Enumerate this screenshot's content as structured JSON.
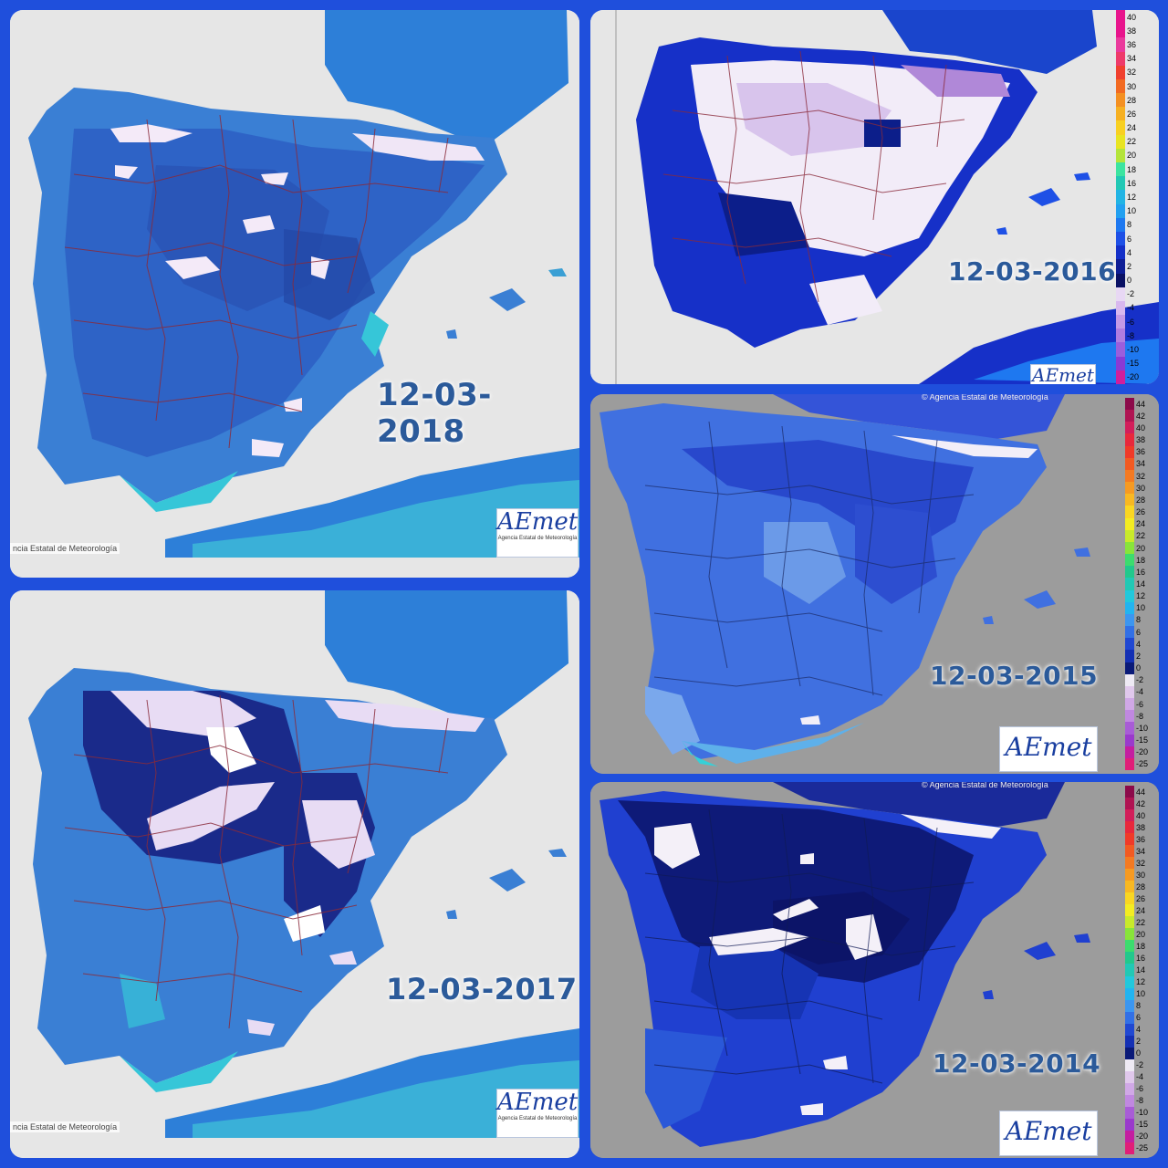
{
  "panels": [
    {
      "id": "p2018",
      "date": "12-03-2018",
      "credit": "ncia Estatal de Meteorología",
      "logo": "AEmet",
      "logo_sub": "Agencia Estatal de Meteorología"
    },
    {
      "id": "p2016",
      "date": "12-03-2016",
      "logo": "AEmet"
    },
    {
      "id": "p2017",
      "date": "12-03-2017",
      "credit": "ncia Estatal de Meteorología",
      "logo": "AEmet",
      "logo_sub": "Agencia Estatal de Meteorología"
    },
    {
      "id": "p2015",
      "date": "12-03-2015",
      "credit": "© Agencia Estatal de Meteorología",
      "logo": "AEmet"
    },
    {
      "id": "p2014",
      "date": "12-03-2014",
      "credit": "© Agencia Estatal de Meteorología",
      "logo": "AEmet"
    }
  ],
  "legend_2016": {
    "labels": [
      "40",
      "38",
      "36",
      "34",
      "32",
      "30",
      "28",
      "26",
      "24",
      "22",
      "20",
      "18",
      "16",
      "12",
      "10",
      "8",
      "6",
      "4",
      "2",
      "0",
      "-2",
      "-4",
      "-6",
      "-8",
      "-10",
      "-15",
      "-20"
    ],
    "colors": [
      "#e8148c",
      "#e8148c",
      "#ea3a9c",
      "#ee3a6a",
      "#f0402e",
      "#f26a22",
      "#f49022",
      "#f6b022",
      "#f8d022",
      "#e8e422",
      "#b4e43a",
      "#3ce4a0",
      "#22c8b4",
      "#22b4e4",
      "#22a0f0",
      "#1e78f0",
      "#1e50e6",
      "#1430c8",
      "#0e1e96",
      "#0a1064",
      "#e8d8f4",
      "#d8b8ee",
      "#c49ae6",
      "#b07ce0",
      "#9a5edc",
      "#8a3ad4",
      "#d01e9c"
    ]
  },
  "legend_2015": {
    "labels": [
      "44",
      "42",
      "40",
      "38",
      "36",
      "34",
      "32",
      "30",
      "28",
      "26",
      "24",
      "22",
      "20",
      "18",
      "16",
      "14",
      "12",
      "10",
      "8",
      "6",
      "4",
      "2",
      "0",
      "-2",
      "-4",
      "-6",
      "-8",
      "-10",
      "-15",
      "-20",
      "-25"
    ],
    "colors": [
      "#8c0a4a",
      "#b01452",
      "#d21e5a",
      "#e8283c",
      "#f03a28",
      "#f25a22",
      "#f47a22",
      "#f69a22",
      "#f8b822",
      "#fad622",
      "#f4ec22",
      "#c8ea2a",
      "#88e43a",
      "#3cdc6e",
      "#22c88c",
      "#22c8b4",
      "#22c8dc",
      "#22b4f0",
      "#3c96f0",
      "#3270e6",
      "#2048d2",
      "#1430b4",
      "#0a1a78",
      "#eeeaf4",
      "#e0c8ec",
      "#d0a8e6",
      "#c088e0",
      "#a85cd6",
      "#9a3acc",
      "#c41ea0",
      "#e01e78"
    ]
  },
  "legend_2014": {
    "labels": [
      "44",
      "42",
      "40",
      "38",
      "36",
      "34",
      "32",
      "30",
      "28",
      "26",
      "24",
      "22",
      "20",
      "18",
      "16",
      "14",
      "12",
      "10",
      "8",
      "6",
      "4",
      "2",
      "0",
      "-2",
      "-4",
      "-6",
      "-8",
      "-10",
      "-15",
      "-20",
      "-25"
    ],
    "colors": [
      "#8c0a4a",
      "#b01452",
      "#d21e5a",
      "#e8283c",
      "#f03a28",
      "#f25a22",
      "#f47a22",
      "#f69a22",
      "#f8b822",
      "#fad622",
      "#f4ec22",
      "#c8ea2a",
      "#88e43a",
      "#3cdc6e",
      "#22c88c",
      "#22c8b4",
      "#22c8dc",
      "#22b4f0",
      "#3c96f0",
      "#3270e6",
      "#2048d2",
      "#1430b4",
      "#0a1a78",
      "#eeeaf4",
      "#e0c8ec",
      "#d0a8e6",
      "#c088e0",
      "#a85cd6",
      "#9a3acc",
      "#c41ea0",
      "#e01e78"
    ]
  }
}
